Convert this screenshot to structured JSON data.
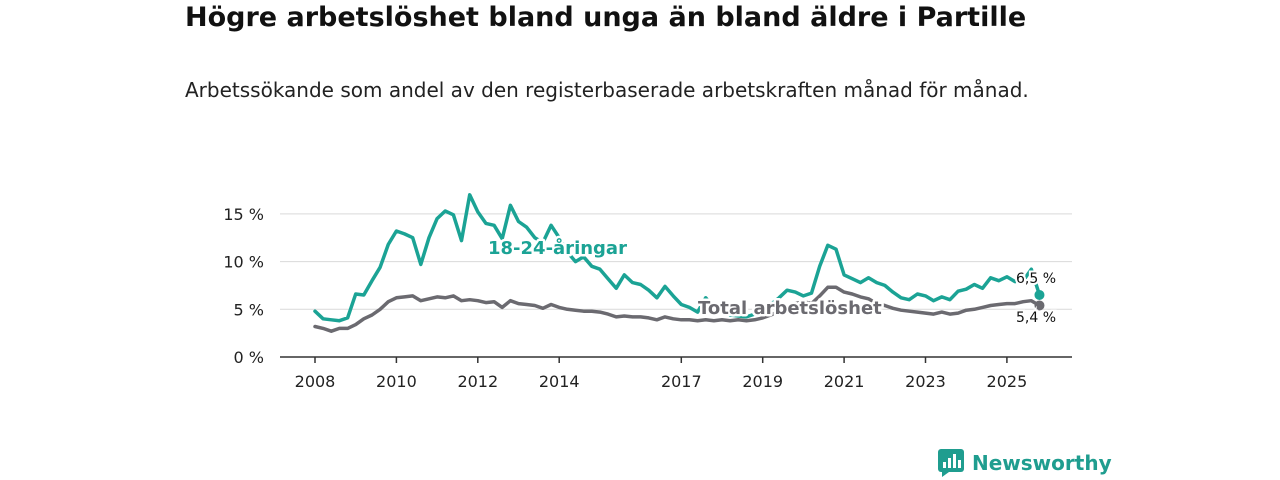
{
  "title": "Högre arbetslöshet bland unga än bland äldre i Partille",
  "subtitle": "Arbetssökande som andel av den registerbaserade arbetskraften månad för månad.",
  "brand": {
    "name": "Newsworthy",
    "color": "#1f9d8f"
  },
  "chart_data": {
    "type": "line",
    "title": "Högre arbetslöshet bland unga än bland äldre i Partille",
    "xlabel": "",
    "ylabel": "",
    "xlim": [
      2008,
      2026.3
    ],
    "ylim": [
      0,
      17.5
    ],
    "grid": true,
    "x_ticks": [
      {
        "value": 2008,
        "label": "2008"
      },
      {
        "value": 2010,
        "label": "2010"
      },
      {
        "value": 2012,
        "label": "2012"
      },
      {
        "value": 2014,
        "label": "2014"
      },
      {
        "value": 2017,
        "label": "2017"
      },
      {
        "value": 2019,
        "label": "2019"
      },
      {
        "value": 2021,
        "label": "2021"
      },
      {
        "value": 2023,
        "label": "2023"
      },
      {
        "value": 2025,
        "label": "2025"
      }
    ],
    "y_ticks": [
      {
        "value": 0,
        "label": "0 %"
      },
      {
        "value": 5,
        "label": "5 %"
      },
      {
        "value": 10,
        "label": "10 %"
      },
      {
        "value": 15,
        "label": "15 %"
      }
    ],
    "series": [
      {
        "name": "18-24-åringar",
        "color": "#1ba395",
        "end_value_label": "6,5 %",
        "points": [
          [
            2008.0,
            4.8
          ],
          [
            2008.2,
            4.0
          ],
          [
            2008.4,
            3.9
          ],
          [
            2008.6,
            3.8
          ],
          [
            2008.8,
            4.1
          ],
          [
            2009.0,
            6.6
          ],
          [
            2009.2,
            6.5
          ],
          [
            2009.4,
            8.0
          ],
          [
            2009.6,
            9.4
          ],
          [
            2009.8,
            11.8
          ],
          [
            2010.0,
            13.2
          ],
          [
            2010.2,
            12.9
          ],
          [
            2010.4,
            12.5
          ],
          [
            2010.6,
            9.7
          ],
          [
            2010.8,
            12.5
          ],
          [
            2011.0,
            14.5
          ],
          [
            2011.2,
            15.3
          ],
          [
            2011.4,
            14.9
          ],
          [
            2011.6,
            12.2
          ],
          [
            2011.8,
            17.0
          ],
          [
            2012.0,
            15.2
          ],
          [
            2012.2,
            14.0
          ],
          [
            2012.4,
            13.8
          ],
          [
            2012.6,
            12.4
          ],
          [
            2012.8,
            15.9
          ],
          [
            2013.0,
            14.2
          ],
          [
            2013.2,
            13.6
          ],
          [
            2013.4,
            12.5
          ],
          [
            2013.6,
            12.0
          ],
          [
            2013.8,
            13.8
          ],
          [
            2014.0,
            12.5
          ],
          [
            2014.2,
            11.0
          ],
          [
            2014.4,
            10.0
          ],
          [
            2014.6,
            10.5
          ],
          [
            2014.8,
            9.5
          ],
          [
            2015.0,
            9.2
          ],
          [
            2015.2,
            8.2
          ],
          [
            2015.4,
            7.2
          ],
          [
            2015.6,
            8.6
          ],
          [
            2015.8,
            7.8
          ],
          [
            2016.0,
            7.6
          ],
          [
            2016.2,
            7.0
          ],
          [
            2016.4,
            6.2
          ],
          [
            2016.6,
            7.4
          ],
          [
            2016.8,
            6.4
          ],
          [
            2017.0,
            5.5
          ],
          [
            2017.2,
            5.2
          ],
          [
            2017.4,
            4.7
          ],
          [
            2017.6,
            6.2
          ],
          [
            2017.8,
            5.2
          ],
          [
            2018.0,
            4.8
          ],
          [
            2018.2,
            4.4
          ],
          [
            2018.4,
            4.3
          ],
          [
            2018.6,
            4.2
          ],
          [
            2018.8,
            4.5
          ],
          [
            2019.0,
            4.9
          ],
          [
            2019.2,
            5.5
          ],
          [
            2019.4,
            6.2
          ],
          [
            2019.6,
            7.0
          ],
          [
            2019.8,
            6.8
          ],
          [
            2020.0,
            6.4
          ],
          [
            2020.2,
            6.7
          ],
          [
            2020.4,
            9.5
          ],
          [
            2020.6,
            11.7
          ],
          [
            2020.8,
            11.3
          ],
          [
            2021.0,
            8.6
          ],
          [
            2021.2,
            8.2
          ],
          [
            2021.4,
            7.8
          ],
          [
            2021.6,
            8.3
          ],
          [
            2021.8,
            7.8
          ],
          [
            2022.0,
            7.5
          ],
          [
            2022.2,
            6.8
          ],
          [
            2022.4,
            6.2
          ],
          [
            2022.6,
            6.0
          ],
          [
            2022.8,
            6.6
          ],
          [
            2023.0,
            6.4
          ],
          [
            2023.2,
            5.9
          ],
          [
            2023.4,
            6.3
          ],
          [
            2023.6,
            6.0
          ],
          [
            2023.8,
            6.9
          ],
          [
            2024.0,
            7.1
          ],
          [
            2024.2,
            7.6
          ],
          [
            2024.4,
            7.2
          ],
          [
            2024.6,
            8.3
          ],
          [
            2024.8,
            8.0
          ],
          [
            2025.0,
            8.4
          ],
          [
            2025.2,
            7.9
          ],
          [
            2025.4,
            8.0
          ],
          [
            2025.6,
            9.2
          ],
          [
            2025.8,
            6.5
          ]
        ]
      },
      {
        "name": "Total arbetslöshet",
        "color": "#6b6a70",
        "end_value_label": "5,4 %",
        "points": [
          [
            2008.0,
            3.2
          ],
          [
            2008.2,
            3.0
          ],
          [
            2008.4,
            2.7
          ],
          [
            2008.6,
            3.0
          ],
          [
            2008.8,
            3.0
          ],
          [
            2009.0,
            3.4
          ],
          [
            2009.2,
            4.0
          ],
          [
            2009.4,
            4.4
          ],
          [
            2009.6,
            5.0
          ],
          [
            2009.8,
            5.8
          ],
          [
            2010.0,
            6.2
          ],
          [
            2010.2,
            6.3
          ],
          [
            2010.4,
            6.4
          ],
          [
            2010.6,
            5.9
          ],
          [
            2010.8,
            6.1
          ],
          [
            2011.0,
            6.3
          ],
          [
            2011.2,
            6.2
          ],
          [
            2011.4,
            6.4
          ],
          [
            2011.6,
            5.9
          ],
          [
            2011.8,
            6.0
          ],
          [
            2012.0,
            5.9
          ],
          [
            2012.2,
            5.7
          ],
          [
            2012.4,
            5.8
          ],
          [
            2012.6,
            5.2
          ],
          [
            2012.8,
            5.9
          ],
          [
            2013.0,
            5.6
          ],
          [
            2013.2,
            5.5
          ],
          [
            2013.4,
            5.4
          ],
          [
            2013.6,
            5.1
          ],
          [
            2013.8,
            5.5
          ],
          [
            2014.0,
            5.2
          ],
          [
            2014.2,
            5.0
          ],
          [
            2014.4,
            4.9
          ],
          [
            2014.6,
            4.8
          ],
          [
            2014.8,
            4.8
          ],
          [
            2015.0,
            4.7
          ],
          [
            2015.2,
            4.5
          ],
          [
            2015.4,
            4.2
          ],
          [
            2015.6,
            4.3
          ],
          [
            2015.8,
            4.2
          ],
          [
            2016.0,
            4.2
          ],
          [
            2016.2,
            4.1
          ],
          [
            2016.4,
            3.9
          ],
          [
            2016.6,
            4.2
          ],
          [
            2016.8,
            4.0
          ],
          [
            2017.0,
            3.9
          ],
          [
            2017.2,
            3.9
          ],
          [
            2017.4,
            3.8
          ],
          [
            2017.6,
            3.9
          ],
          [
            2017.8,
            3.8
          ],
          [
            2018.0,
            3.9
          ],
          [
            2018.2,
            3.8
          ],
          [
            2018.4,
            3.9
          ],
          [
            2018.6,
            3.8
          ],
          [
            2018.8,
            3.9
          ],
          [
            2019.0,
            4.1
          ],
          [
            2019.2,
            4.4
          ],
          [
            2019.4,
            4.8
          ],
          [
            2019.6,
            5.3
          ],
          [
            2019.8,
            5.6
          ],
          [
            2020.0,
            5.8
          ],
          [
            2020.2,
            5.6
          ],
          [
            2020.4,
            6.4
          ],
          [
            2020.6,
            7.3
          ],
          [
            2020.8,
            7.3
          ],
          [
            2021.0,
            6.8
          ],
          [
            2021.2,
            6.6
          ],
          [
            2021.4,
            6.3
          ],
          [
            2021.6,
            6.1
          ],
          [
            2021.8,
            5.6
          ],
          [
            2022.0,
            5.4
          ],
          [
            2022.2,
            5.1
          ],
          [
            2022.4,
            4.9
          ],
          [
            2022.6,
            4.8
          ],
          [
            2022.8,
            4.7
          ],
          [
            2023.0,
            4.6
          ],
          [
            2023.2,
            4.5
          ],
          [
            2023.4,
            4.7
          ],
          [
            2023.6,
            4.5
          ],
          [
            2023.8,
            4.6
          ],
          [
            2024.0,
            4.9
          ],
          [
            2024.2,
            5.0
          ],
          [
            2024.4,
            5.2
          ],
          [
            2024.6,
            5.4
          ],
          [
            2024.8,
            5.5
          ],
          [
            2025.0,
            5.6
          ],
          [
            2025.2,
            5.6
          ],
          [
            2025.4,
            5.8
          ],
          [
            2025.6,
            5.9
          ],
          [
            2025.8,
            5.4
          ]
        ]
      }
    ]
  }
}
